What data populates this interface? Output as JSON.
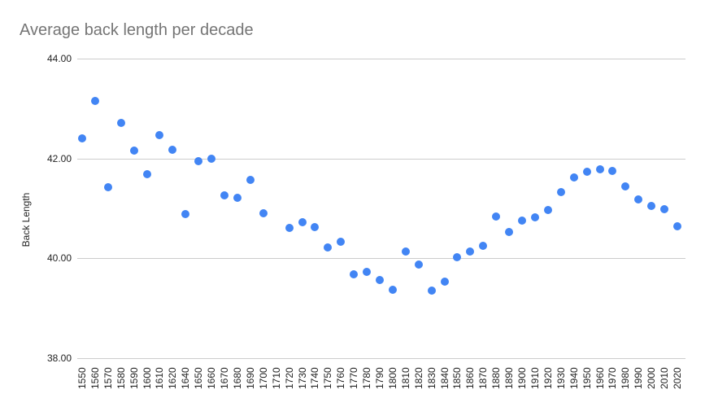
{
  "chart": {
    "title": "Average back length per decade",
    "ylabel": "Back Length",
    "y_ticks": [
      "44.00",
      "42.00",
      "40.00",
      "38.00"
    ],
    "point_color": "#4285f4",
    "grid_color": "#cccccc"
  },
  "chart_data": {
    "type": "scatter",
    "title": "Average back length per decade",
    "xlabel": "",
    "ylabel": "Back Length",
    "ylim": [
      38,
      44
    ],
    "y_ticks": [
      38,
      40,
      42,
      44
    ],
    "grid": true,
    "legend": "none",
    "categories": [
      "1550",
      "1560",
      "1570",
      "1580",
      "1590",
      "1600",
      "1610",
      "1620",
      "1640",
      "1650",
      "1660",
      "1670",
      "1680",
      "1690",
      "1700",
      "1710",
      "1720",
      "1730",
      "1740",
      "1750",
      "1760",
      "1770",
      "1780",
      "1790",
      "1800",
      "1810",
      "1820",
      "1830",
      "1840",
      "1850",
      "1860",
      "1870",
      "1880",
      "1890",
      "1900",
      "1910",
      "1920",
      "1930",
      "1940",
      "1950",
      "1960",
      "1970",
      "1980",
      "1990",
      "2000",
      "2010",
      "2020"
    ],
    "series": [
      {
        "name": "Back Length",
        "values": [
          42.4,
          43.15,
          41.42,
          42.71,
          42.16,
          41.68,
          42.47,
          42.17,
          40.88,
          41.95,
          42.0,
          41.26,
          41.21,
          41.57,
          40.9,
          null,
          40.61,
          40.72,
          40.62,
          40.22,
          40.33,
          39.68,
          39.73,
          39.56,
          39.37,
          40.13,
          39.87,
          39.35,
          39.53,
          40.02,
          40.13,
          40.25,
          40.84,
          40.53,
          40.75,
          40.82,
          40.97,
          41.33,
          41.62,
          41.73,
          41.78,
          41.75,
          41.44,
          41.18,
          41.05,
          40.98,
          40.64
        ]
      }
    ]
  }
}
